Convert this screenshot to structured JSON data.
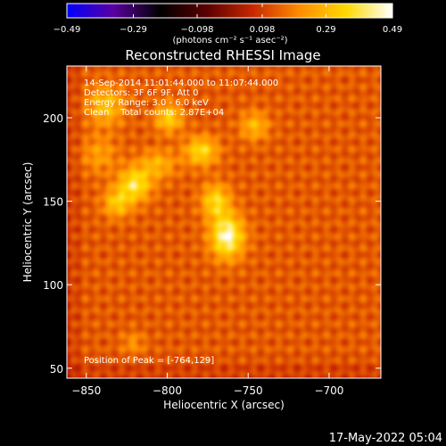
{
  "chart_data": {
    "type": "heatmap",
    "title": "Reconstructed RHESSI Image",
    "xlabel": "Heliocentric X (arcsec)",
    "ylabel": "Heliocentric Y (arcsec)",
    "xlim": [
      -862,
      -668
    ],
    "ylim": [
      44,
      231
    ],
    "x_ticks": [
      -850,
      -800,
      -750,
      -700
    ],
    "y_ticks": [
      50,
      100,
      150,
      200
    ],
    "x_tick_labels": [
      "−850",
      "−800",
      "−750",
      "−700"
    ],
    "y_tick_labels": [
      "50",
      "100",
      "150",
      "200"
    ],
    "colorbar": {
      "min": -0.49,
      "max": 0.49,
      "tick_values": [
        -0.49,
        -0.29,
        -0.098,
        0.098,
        0.29,
        0.49
      ],
      "tick_labels": [
        "−0.49",
        "−0.29",
        "−0.098",
        "0.098",
        "0.29",
        "0.49"
      ],
      "units_label": "(photons cm⁻² s⁻¹ asec⁻²)",
      "colors": [
        "#0000ff",
        "#5a00a0",
        "#000000",
        "#5a0000",
        "#c82800",
        "#ff8c00",
        "#ffd800",
        "#ffffff"
      ]
    },
    "annotations": [
      "14-Sep-2014 11:01:44.000 to 11:07:44.000",
      "Detectors: 3F 6F 9F, Att 0",
      "Energy Range: 3.0 - 6.0 keV",
      "Clean    Total counts: 2.87E+04"
    ],
    "peak_label": "Position of Peak = [-764,129]",
    "background_level": 0.14,
    "sources": [
      {
        "x": -763,
        "y": 129,
        "sx": 7,
        "sy": 9,
        "amp": 0.33
      },
      {
        "x": -770,
        "y": 150,
        "sx": 6,
        "sy": 7,
        "amp": 0.22
      },
      {
        "x": -820,
        "y": 160,
        "sx": 7,
        "sy": 7,
        "amp": 0.25
      },
      {
        "x": -831,
        "y": 149,
        "sx": 6,
        "sy": 6,
        "amp": 0.18
      },
      {
        "x": -779,
        "y": 180,
        "sx": 7,
        "sy": 6,
        "amp": 0.22
      },
      {
        "x": -799,
        "y": 200,
        "sx": 6,
        "sy": 6,
        "amp": 0.2
      },
      {
        "x": -838,
        "y": 207,
        "sx": 8,
        "sy": 8,
        "amp": 0.17
      },
      {
        "x": -746,
        "y": 195,
        "sx": 6,
        "sy": 6,
        "amp": 0.15
      },
      {
        "x": -806,
        "y": 172,
        "sx": 8,
        "sy": 6,
        "amp": 0.14
      },
      {
        "x": -842,
        "y": 178,
        "sx": 8,
        "sy": 8,
        "amp": 0.1
      },
      {
        "x": -821,
        "y": 65,
        "sx": 5,
        "sy": 5,
        "amp": 0.08
      }
    ]
  },
  "footer": {
    "timestamp": "17-May-2022 05:04"
  }
}
